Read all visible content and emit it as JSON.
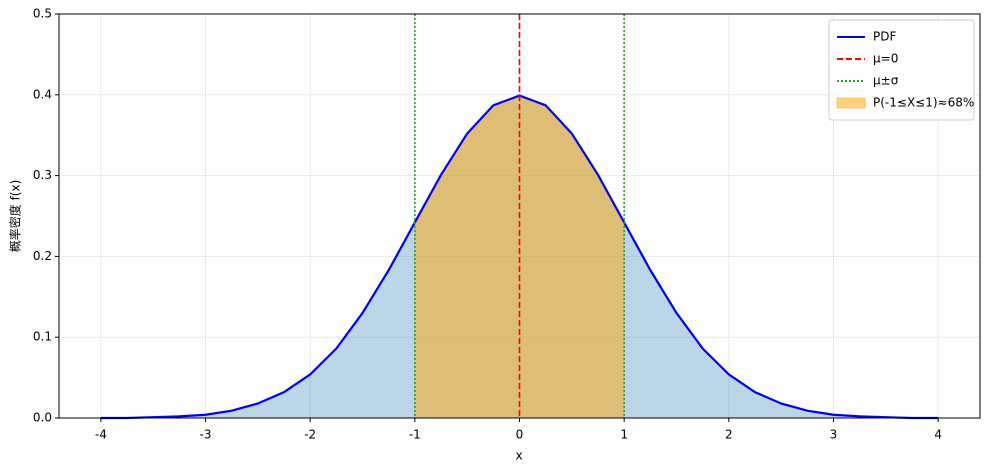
{
  "chart_data": {
    "type": "line",
    "xlabel": "x",
    "ylabel": "概率密度 f(x)",
    "x": [
      -4,
      -3.75,
      -3.5,
      -3.25,
      -3,
      -2.75,
      -2.5,
      -2.25,
      -2,
      -1.75,
      -1.5,
      -1.25,
      -1,
      -0.75,
      -0.5,
      -0.25,
      0,
      0.25,
      0.5,
      0.75,
      1,
      1.25,
      1.5,
      1.75,
      2,
      2.25,
      2.5,
      2.75,
      3,
      3.25,
      3.5,
      3.75,
      4
    ],
    "series": [
      {
        "name": "PDF",
        "color": "#0000ff",
        "fill_color": "#1f77b4",
        "fill_alpha": 0.3,
        "values": [
          0.0,
          0.0,
          0.001,
          0.002,
          0.004,
          0.009,
          0.018,
          0.032,
          0.054,
          0.086,
          0.13,
          0.183,
          0.242,
          0.301,
          0.352,
          0.387,
          0.399,
          0.387,
          0.352,
          0.301,
          0.242,
          0.183,
          0.13,
          0.086,
          0.054,
          0.032,
          0.018,
          0.009,
          0.004,
          0.002,
          0.001,
          0.0,
          0.0
        ]
      }
    ],
    "vlines": [
      {
        "name": "μ=0",
        "color": "#ff0000",
        "style": "dashed",
        "x": [
          0
        ]
      },
      {
        "name": "μ±σ",
        "color": "#2ca02c",
        "style": "dotted",
        "x": [
          -1,
          1
        ]
      }
    ],
    "shade": {
      "name": "P(-1≤X≤1)≈68%",
      "color": "#ffa500",
      "alpha": 0.5,
      "range": [
        -1,
        1
      ]
    },
    "xlim": [
      -4.4,
      4.4
    ],
    "ylim": [
      0,
      0.5
    ],
    "xticks": [
      -4,
      -3,
      -2,
      -1,
      0,
      1,
      2,
      3,
      4
    ],
    "yticks": [
      {
        "value": 0,
        "label": "0.0"
      },
      0.1,
      0.2,
      0.3,
      0.4,
      0.5
    ],
    "grid": true,
    "legend": "upper right"
  }
}
